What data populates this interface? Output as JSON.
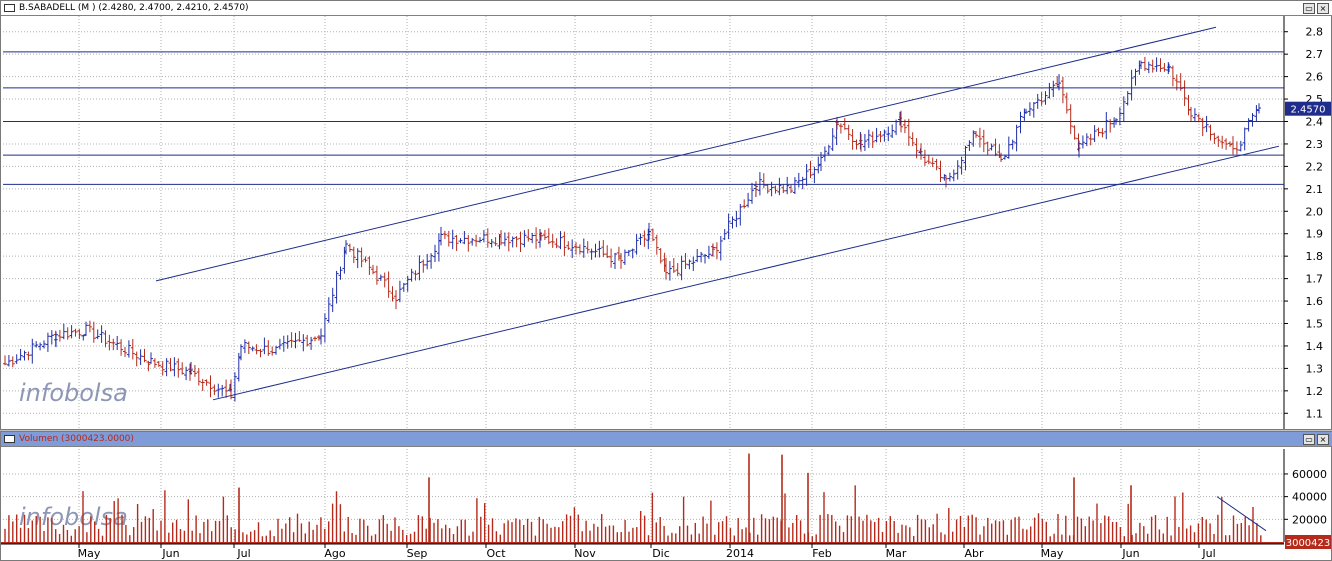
{
  "price_panel": {
    "title": "B.SABADELL (M ) (2.4280, 2.4700, 2.4210, 2.4570)",
    "watermark": "infobolsa",
    "last_price_label": "2.4570",
    "colors": {
      "up": "#1e2da8",
      "down": "#b52a1b",
      "trendline": "#1e2d8c",
      "grid": "#b0b0b0",
      "background": "#ffffff"
    }
  },
  "volume_panel": {
    "title": "Volumen (3000423.0000)",
    "watermark": "infobolsa",
    "last_volume_label": "3000423",
    "title_bar_color": "#7f9bd8"
  },
  "window_buttons": {
    "restore_icon": "restore-icon",
    "close_icon": "close-icon",
    "restore": "▭",
    "close": "×"
  },
  "chart_data": [
    {
      "type": "ohlc",
      "title": "B.SABADELL (M ) (2.4280, 2.4700, 2.4210, 2.4570)",
      "xlabel": "",
      "ylabel": "",
      "x_tick_labels": [
        "May",
        "Jun",
        "Jul",
        "Ago",
        "Sep",
        "Oct",
        "Nov",
        "Dic",
        "2014",
        "Feb",
        "Mar",
        "Abr",
        "May",
        "Jun",
        "Jul"
      ],
      "y_ticks": [
        1.1,
        1.2,
        1.3,
        1.4,
        1.5,
        1.6,
        1.7,
        1.8,
        1.9,
        2.0,
        2.1,
        2.2,
        2.3,
        2.4,
        2.5,
        2.6,
        2.7,
        2.8
      ],
      "ylim": [
        1.03,
        2.87
      ],
      "grid": true,
      "last_close": 2.457,
      "close_path_anchors": [
        [
          "May",
          1.32
        ],
        [
          "May",
          1.45
        ],
        [
          "May",
          1.47
        ],
        [
          "Jun",
          1.33
        ],
        [
          "Jun",
          1.28
        ],
        [
          "Jul",
          1.18
        ],
        [
          "Jul",
          1.4
        ],
        [
          "Jul",
          1.38
        ],
        [
          "Ago",
          1.45
        ],
        [
          "Ago",
          1.85
        ],
        [
          "Ago",
          1.73
        ],
        [
          "Sep",
          1.62
        ],
        [
          "Sep",
          1.88
        ],
        [
          "Oct",
          1.88
        ],
        [
          "Oct",
          1.88
        ],
        [
          "Nov",
          1.85
        ],
        [
          "Nov",
          1.78
        ],
        [
          "Dic",
          1.9
        ],
        [
          "Dic",
          1.72
        ],
        [
          "2014",
          1.82
        ],
        [
          "2014",
          2.12
        ],
        [
          "2014",
          2.1
        ],
        [
          "Feb",
          2.22
        ],
        [
          "Feb",
          2.4
        ],
        [
          "Feb",
          2.3
        ],
        [
          "Mar",
          2.4
        ],
        [
          "Mar",
          2.25
        ],
        [
          "Mar",
          2.13
        ],
        [
          "Abr",
          2.35
        ],
        [
          "Abr",
          2.22
        ],
        [
          "May",
          2.45
        ],
        [
          "May",
          2.57
        ],
        [
          "May",
          2.28
        ],
        [
          "Jun",
          2.42
        ],
        [
          "Jun",
          2.66
        ],
        [
          "Jun",
          2.64
        ],
        [
          "Jul",
          2.45
        ],
        [
          "Jul",
          2.26
        ],
        [
          "Jul",
          2.46
        ]
      ],
      "horizontal_lines": [
        2.71,
        2.55,
        2.4,
        2.25,
        2.12
      ],
      "channel_upper": [
        [
          "Jun",
          1.69
        ],
        [
          "Jul",
          2.82
        ]
      ],
      "channel_lower": [
        [
          "Jul",
          1.16
        ],
        [
          "Jul",
          2.29
        ]
      ]
    },
    {
      "type": "bar",
      "title": "Volumen (3000423.0000)",
      "xlabel": "",
      "ylabel": "",
      "y_ticks": [
        20000,
        40000,
        60000
      ],
      "ylim": [
        0,
        82000
      ],
      "last_value": 3000423,
      "peaks": [
        [
          "Jul",
          48000
        ],
        [
          "Sep",
          57000
        ],
        [
          "2014",
          78000
        ],
        [
          "2014",
          77000
        ],
        [
          "Feb",
          61000
        ],
        [
          "May",
          57000
        ],
        [
          "Jun",
          50000
        ]
      ],
      "baseline_range": [
        5000,
        25000
      ],
      "trendline": [
        [
          "Jul",
          40000
        ],
        [
          "Jul",
          10000
        ]
      ]
    }
  ]
}
